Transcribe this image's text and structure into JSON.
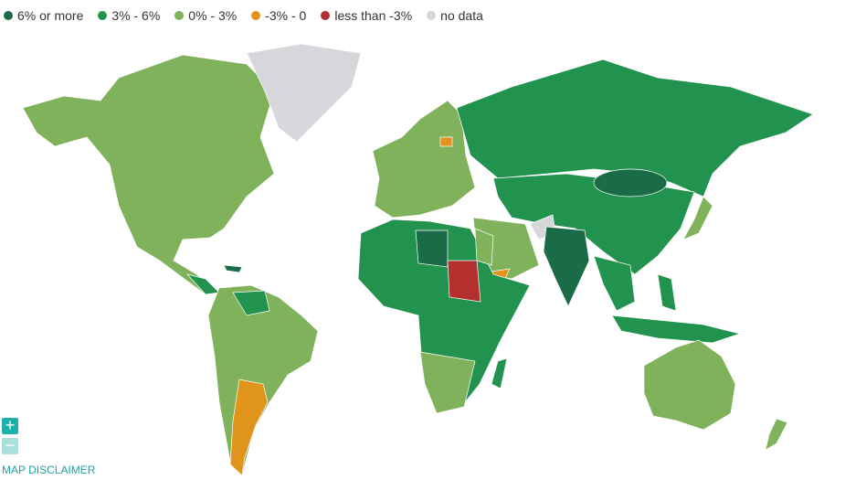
{
  "legend": {
    "items": [
      {
        "label": "6% or more",
        "color": "#1a6b47"
      },
      {
        "label": "3% - 6%",
        "color": "#22924f"
      },
      {
        "label": "0% - 3%",
        "color": "#80b15b"
      },
      {
        "label": "-3% - 0",
        "color": "#e0941c"
      },
      {
        "label": "less than -3%",
        "color": "#b3302f"
      },
      {
        "label": "no data",
        "color": "#d6d7db"
      }
    ]
  },
  "controls": {
    "zoom_in": "+",
    "zoom_out": "−"
  },
  "disclaimer": "MAP DISCLAIMER"
}
